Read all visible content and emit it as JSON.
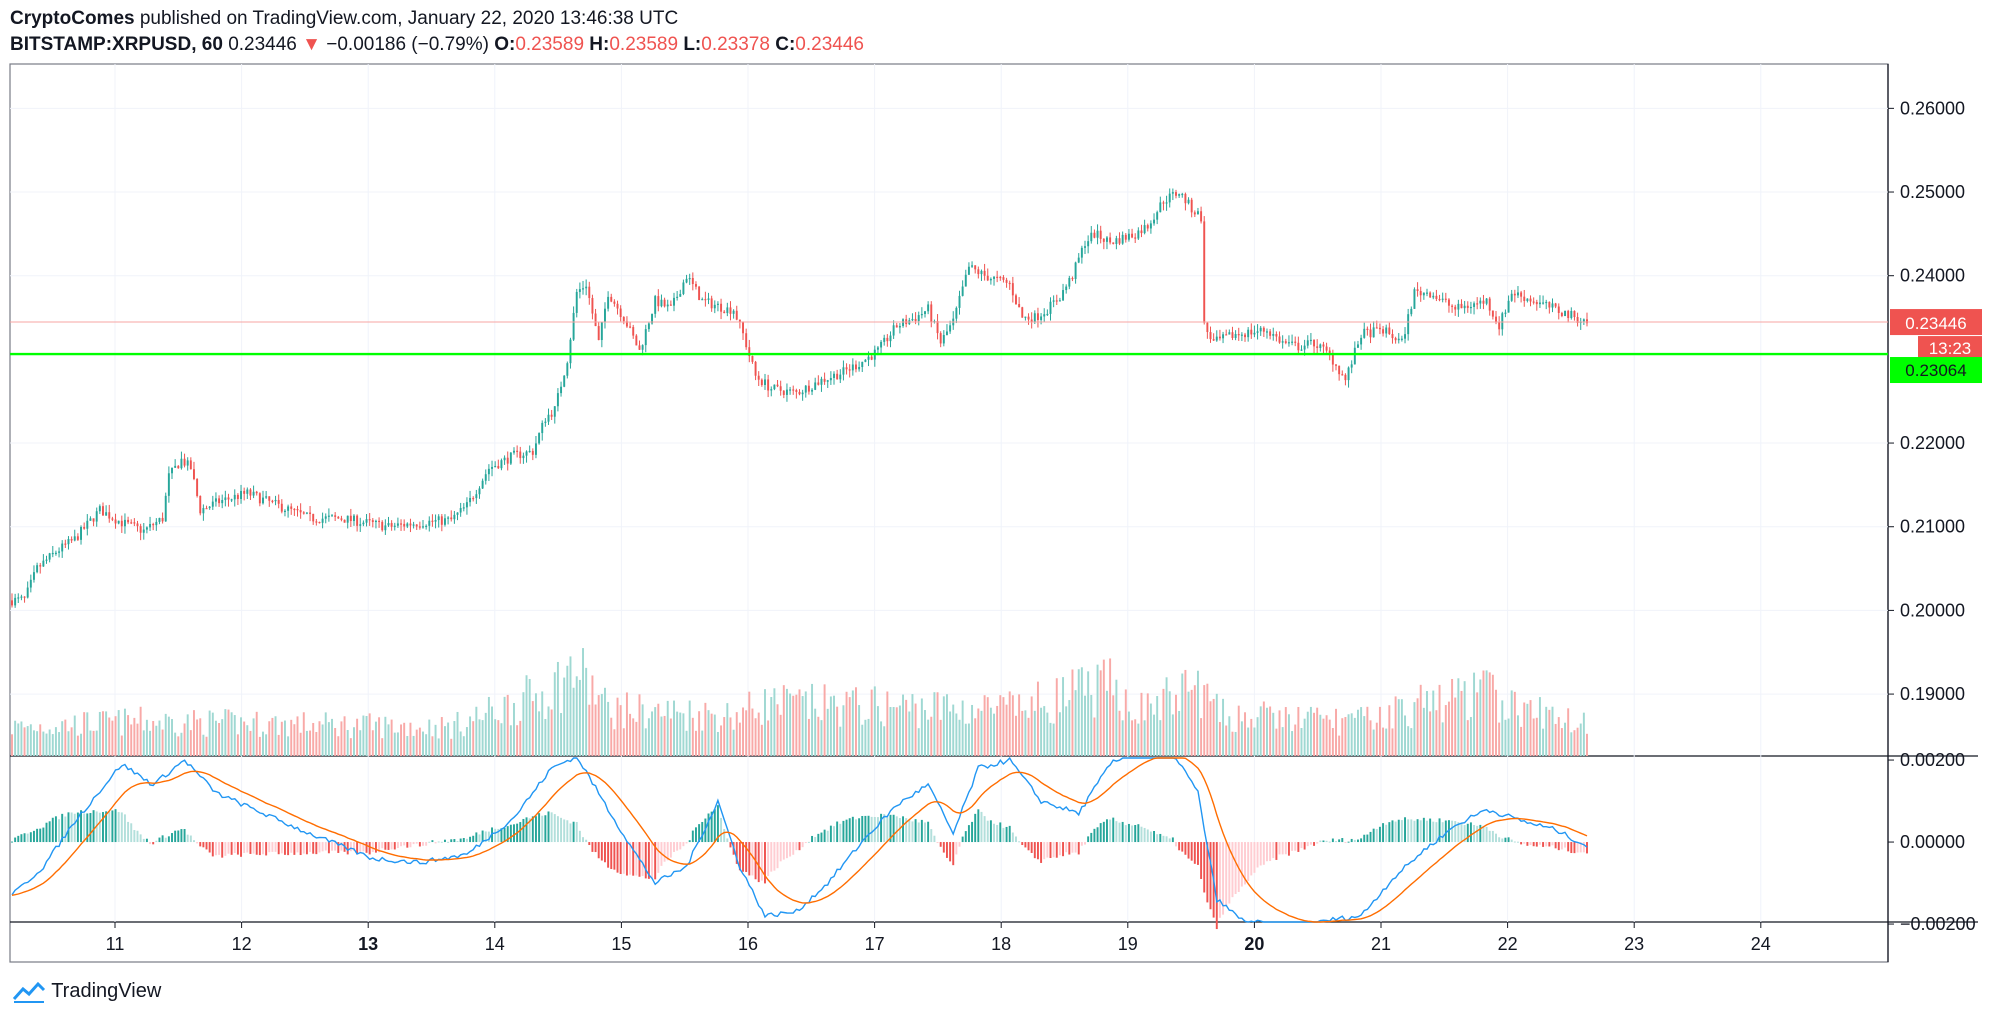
{
  "header": {
    "publisher": "CryptoComes",
    "published_text": "published on TradingView.com, January 22, 2020 13:46:38 UTC",
    "symbol": "BITSTAMP:XRPUSD, 60",
    "last": "0.23446",
    "change_arrow": "▼",
    "change": "−0.00186 (−0.79%)",
    "o_label": "O:",
    "o_value": "0.23589",
    "h_label": "H:",
    "h_value": "0.23589",
    "l_label": "L:",
    "l_value": "0.23378",
    "c_label": "C:",
    "c_value": "0.23446"
  },
  "footer": {
    "brand": "TradingView",
    "logo_icon": "tradingview-logo-icon"
  },
  "colors": {
    "up": "#26a69a",
    "down": "#ef5350",
    "level": "#00ff00",
    "macd": "#2196f3",
    "signal": "#ff6d00"
  },
  "chart_data": {
    "type": "candlestick",
    "x_labels": [
      "11",
      "12",
      "13",
      "14",
      "15",
      "16",
      "17",
      "18",
      "19",
      "20",
      "21",
      "22",
      "23",
      "24"
    ],
    "x_label_bold": [
      "13",
      "20"
    ],
    "price_axis": {
      "ticks": [
        "0.26000",
        "0.25000",
        "0.24000",
        "0.22000",
        "0.21000",
        "0.20000",
        "0.19000"
      ],
      "tick_values": [
        0.26,
        0.25,
        0.24,
        0.22,
        0.21,
        0.2,
        0.19
      ],
      "range": [
        0.1826,
        0.2653
      ],
      "last_price_label": "0.23446",
      "countdown_label": "13:23",
      "level_label": "0.23064",
      "level_value": 0.23064
    },
    "price_anchors": [
      [
        0,
        0.2012
      ],
      [
        4,
        0.2013
      ],
      [
        8,
        0.205
      ],
      [
        14,
        0.207
      ],
      [
        20,
        0.2085
      ],
      [
        28,
        0.212
      ],
      [
        35,
        0.2105
      ],
      [
        42,
        0.2095
      ],
      [
        48,
        0.211
      ],
      [
        50,
        0.216
      ],
      [
        54,
        0.218
      ],
      [
        57,
        0.217
      ],
      [
        60,
        0.212
      ],
      [
        66,
        0.213
      ],
      [
        75,
        0.214
      ],
      [
        85,
        0.2125
      ],
      [
        95,
        0.211
      ],
      [
        105,
        0.211
      ],
      [
        120,
        0.21
      ],
      [
        130,
        0.2105
      ],
      [
        140,
        0.2108
      ],
      [
        145,
        0.2125
      ],
      [
        152,
        0.217
      ],
      [
        160,
        0.2185
      ],
      [
        166,
        0.219
      ],
      [
        170,
        0.223
      ],
      [
        173,
        0.224
      ],
      [
        175,
        0.227
      ],
      [
        177,
        0.23
      ],
      [
        180,
        0.238
      ],
      [
        183,
        0.239
      ],
      [
        187,
        0.232
      ],
      [
        190,
        0.238
      ],
      [
        195,
        0.235
      ],
      [
        200,
        0.231
      ],
      [
        205,
        0.237
      ],
      [
        210,
        0.236
      ],
      [
        215,
        0.24
      ],
      [
        220,
        0.237
      ],
      [
        228,
        0.236
      ],
      [
        230,
        0.236
      ],
      [
        233,
        0.233
      ],
      [
        237,
        0.228
      ],
      [
        242,
        0.2265
      ],
      [
        250,
        0.226
      ],
      [
        258,
        0.2275
      ],
      [
        265,
        0.2285
      ],
      [
        270,
        0.2295
      ],
      [
        276,
        0.231
      ],
      [
        282,
        0.234
      ],
      [
        288,
        0.235
      ],
      [
        292,
        0.236
      ],
      [
        296,
        0.232
      ],
      [
        300,
        0.2345
      ],
      [
        305,
        0.241
      ],
      [
        310,
        0.24
      ],
      [
        318,
        0.239
      ],
      [
        322,
        0.235
      ],
      [
        326,
        0.235
      ],
      [
        330,
        0.236
      ],
      [
        334,
        0.2375
      ],
      [
        338,
        0.24
      ],
      [
        342,
        0.244
      ],
      [
        345,
        0.245
      ],
      [
        350,
        0.244
      ],
      [
        358,
        0.245
      ],
      [
        362,
        0.246
      ],
      [
        367,
        0.249
      ],
      [
        372,
        0.25
      ],
      [
        376,
        0.248
      ],
      [
        379,
        0.247
      ],
      [
        380,
        0.234
      ],
      [
        383,
        0.232
      ],
      [
        390,
        0.233
      ],
      [
        400,
        0.2335
      ],
      [
        405,
        0.232
      ],
      [
        410,
        0.2315
      ],
      [
        415,
        0.232
      ],
      [
        420,
        0.2305
      ],
      [
        425,
        0.2275
      ],
      [
        430,
        0.233
      ],
      [
        437,
        0.2335
      ],
      [
        443,
        0.232
      ],
      [
        447,
        0.238
      ],
      [
        452,
        0.238
      ],
      [
        460,
        0.236
      ],
      [
        470,
        0.237
      ],
      [
        474,
        0.234
      ],
      [
        478,
        0.238
      ],
      [
        485,
        0.237
      ],
      [
        495,
        0.2355
      ],
      [
        502,
        0.2345
      ]
    ],
    "macd_axis": {
      "ticks": [
        "0.00200",
        "0.00000",
        "−0.00200"
      ],
      "tick_values": [
        0.002,
        0.0,
        -0.002
      ],
      "range": [
        -0.00195,
        0.00205
      ]
    },
    "macd_anchors": [
      [
        0,
        -0.0013
      ],
      [
        10,
        -0.0006
      ],
      [
        20,
        0.0005
      ],
      [
        35,
        0.0019
      ],
      [
        45,
        0.0014
      ],
      [
        55,
        0.002
      ],
      [
        65,
        0.0012
      ],
      [
        80,
        0.0007
      ],
      [
        95,
        0.0002
      ],
      [
        115,
        -0.0004
      ],
      [
        130,
        -0.0005
      ],
      [
        145,
        -0.0003
      ],
      [
        160,
        0.0006
      ],
      [
        172,
        0.0018
      ],
      [
        180,
        0.0021
      ],
      [
        190,
        0.0008
      ],
      [
        198,
        -0.0002
      ],
      [
        205,
        -0.001
      ],
      [
        215,
        -0.0006
      ],
      [
        225,
        0.001
      ],
      [
        232,
        -0.0006
      ],
      [
        240,
        -0.0018
      ],
      [
        250,
        -0.0017
      ],
      [
        260,
        -0.001
      ],
      [
        272,
        0.0001
      ],
      [
        282,
        0.0009
      ],
      [
        292,
        0.0014
      ],
      [
        300,
        0.0002
      ],
      [
        308,
        0.0018
      ],
      [
        318,
        0.002
      ],
      [
        328,
        0.001
      ],
      [
        340,
        0.0007
      ],
      [
        350,
        0.0019
      ],
      [
        360,
        0.0023
      ],
      [
        370,
        0.0022
      ],
      [
        378,
        0.0012
      ],
      [
        384,
        -0.0014
      ],
      [
        392,
        -0.0019
      ],
      [
        400,
        -0.002
      ],
      [
        410,
        -0.0021
      ],
      [
        420,
        -0.0019
      ],
      [
        430,
        -0.0018
      ],
      [
        440,
        -0.0009
      ],
      [
        450,
        -0.0002
      ],
      [
        460,
        0.0004
      ],
      [
        470,
        0.0008
      ],
      [
        482,
        0.0005
      ],
      [
        492,
        0.0003
      ],
      [
        502,
        -0.0001
      ]
    ],
    "n_bars": 503,
    "seed": 7,
    "volume_profile": [
      [
        0,
        0.25
      ],
      [
        40,
        0.3
      ],
      [
        140,
        0.25
      ],
      [
        170,
        0.55
      ],
      [
        180,
        0.75
      ],
      [
        190,
        0.4
      ],
      [
        230,
        0.35
      ],
      [
        240,
        0.45
      ],
      [
        320,
        0.4
      ],
      [
        340,
        0.55
      ],
      [
        350,
        0.6
      ],
      [
        360,
        0.4
      ],
      [
        378,
        0.6
      ],
      [
        385,
        0.35
      ],
      [
        430,
        0.3
      ],
      [
        450,
        0.45
      ],
      [
        470,
        0.55
      ],
      [
        480,
        0.4
      ],
      [
        502,
        0.3
      ]
    ]
  }
}
